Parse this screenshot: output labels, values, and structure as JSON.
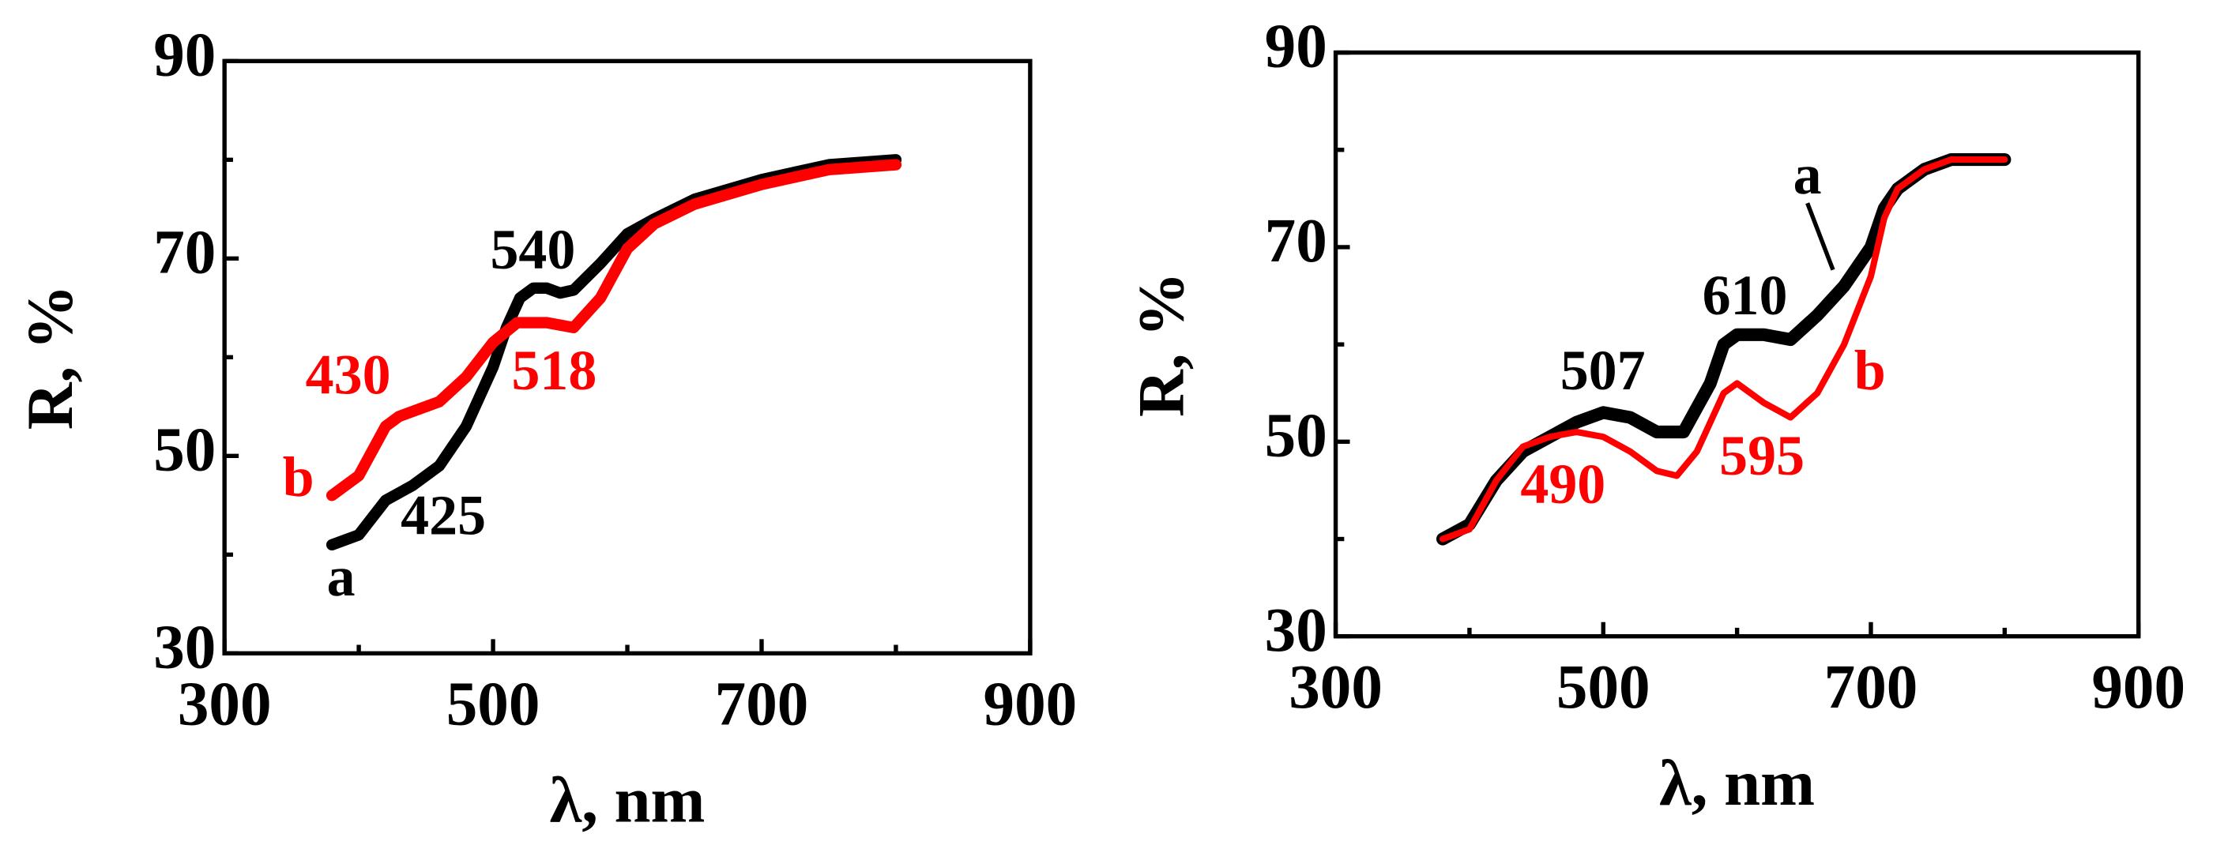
{
  "chart_data": [
    {
      "type": "line",
      "x_label": "λ, nm",
      "y_label": "R, %",
      "xlim": [
        300,
        900
      ],
      "xticks": [
        300,
        500,
        700,
        900
      ],
      "ylim": [
        30,
        90
      ],
      "yticks": [
        30,
        50,
        70,
        90
      ],
      "series": [
        {
          "name": "a",
          "color": "#000000",
          "x": [
            380,
            400,
            420,
            440,
            460,
            480,
            500,
            510,
            520,
            530,
            540,
            550,
            560,
            580,
            600,
            620,
            650,
            700,
            750,
            800
          ],
          "values": [
            41,
            42,
            45.5,
            47,
            49,
            53,
            59,
            63,
            66,
            67,
            67,
            66.5,
            66.8,
            69.5,
            72.5,
            74,
            76,
            78,
            79.5,
            80
          ]
        },
        {
          "name": "b",
          "color": "#ff0000",
          "x": [
            380,
            400,
            420,
            430,
            460,
            480,
            500,
            518,
            540,
            560,
            580,
            600,
            620,
            650,
            700,
            750,
            800
          ],
          "values": [
            46,
            48,
            53,
            54,
            55.5,
            58,
            61.5,
            63.5,
            63.5,
            63,
            66,
            71,
            73.5,
            75.5,
            77.5,
            79,
            79.5
          ]
        }
      ],
      "annotations": [
        {
          "text": "540",
          "color": "#000000"
        },
        {
          "text": "425",
          "color": "#000000"
        },
        {
          "text": "430",
          "color": "#ff0000"
        },
        {
          "text": "518",
          "color": "#ff0000"
        }
      ]
    },
    {
      "type": "line",
      "x_label": "λ, nm",
      "y_label": "R, %",
      "xlim": [
        300,
        900
      ],
      "xticks": [
        300,
        500,
        700,
        900
      ],
      "ylim": [
        30,
        90
      ],
      "yticks": [
        30,
        50,
        70,
        90
      ],
      "series": [
        {
          "name": "a",
          "color": "#000000",
          "x": [
            380,
            400,
            420,
            440,
            460,
            480,
            500,
            520,
            540,
            560,
            580,
            590,
            600,
            620,
            640,
            660,
            680,
            700,
            710,
            720,
            740,
            760,
            800
          ],
          "values": [
            40,
            41.5,
            46,
            49,
            50.5,
            52,
            53,
            52.5,
            51,
            51,
            56,
            60,
            61,
            61,
            60.5,
            63,
            66,
            70,
            74,
            76,
            78,
            79,
            79
          ]
        },
        {
          "name": "b",
          "color": "#ff0000",
          "x": [
            380,
            400,
            420,
            440,
            460,
            480,
            500,
            520,
            540,
            555,
            570,
            590,
            600,
            620,
            640,
            660,
            680,
            700,
            710,
            720,
            740,
            760,
            800
          ],
          "values": [
            40,
            41,
            46,
            49.5,
            50.5,
            51,
            50.5,
            49,
            47,
            46.5,
            49,
            55,
            56,
            54,
            52.5,
            55,
            60,
            67,
            73,
            76,
            78,
            79,
            79
          ]
        }
      ],
      "annotations": [
        {
          "text": "610",
          "color": "#000000"
        },
        {
          "text": "507",
          "color": "#000000"
        },
        {
          "text": "490",
          "color": "#ff0000"
        },
        {
          "text": "595",
          "color": "#ff0000"
        }
      ]
    }
  ]
}
